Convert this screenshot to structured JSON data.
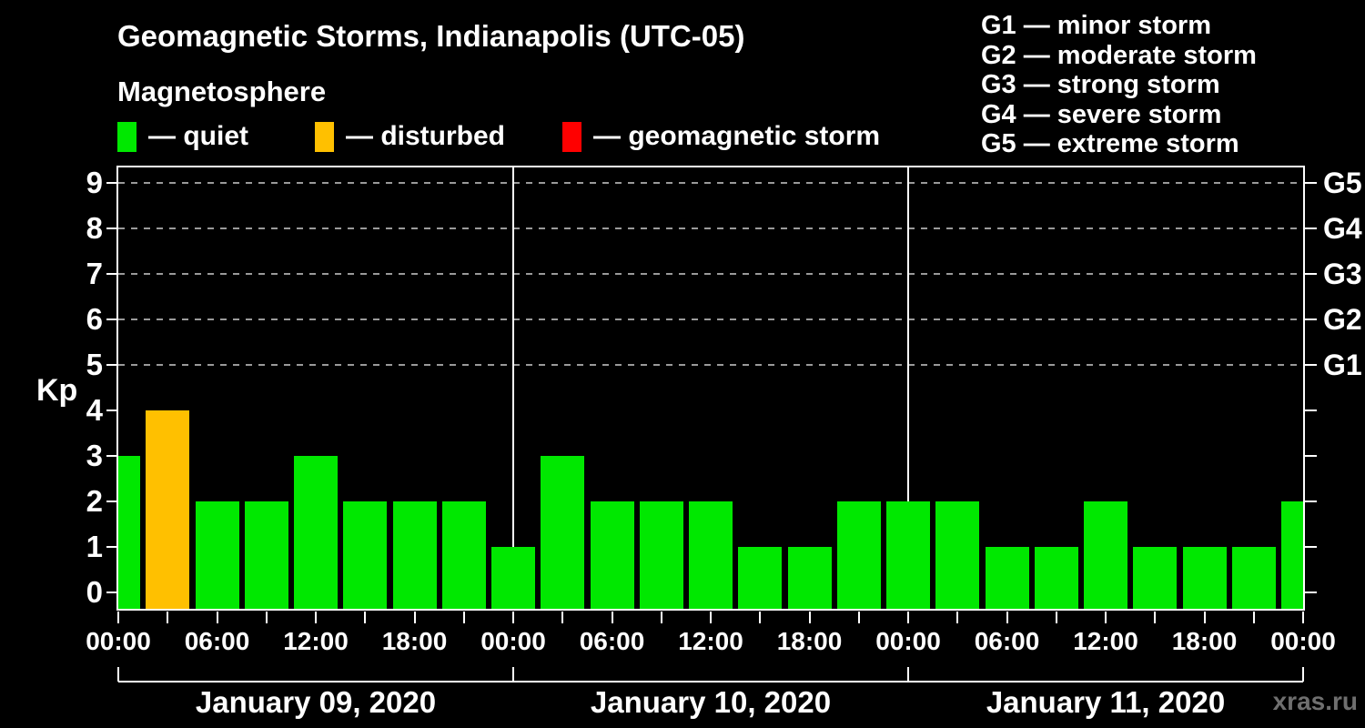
{
  "title": "Geomagnetic Storms, Indianapolis (UTC-05)",
  "subtitle": "Magnetosphere",
  "status_legend": {
    "items": [
      {
        "label": "— quiet",
        "status": "quiet"
      },
      {
        "label": "— disturbed",
        "status": "disturbed"
      },
      {
        "label": "— geomagnetic storm",
        "status": "storm"
      }
    ]
  },
  "g_legend": {
    "items": [
      {
        "label": "G1 — minor storm"
      },
      {
        "label": "G2 — moderate storm"
      },
      {
        "label": "G3 — strong storm"
      },
      {
        "label": "G4 — severe storm"
      },
      {
        "label": "G5 — extreme storm"
      }
    ]
  },
  "axes": {
    "y_label": "Kp",
    "y_ticks": [
      0,
      1,
      2,
      3,
      4,
      5,
      6,
      7,
      8,
      9
    ],
    "right_labels": [
      {
        "kp": 5,
        "label": "G1"
      },
      {
        "kp": 6,
        "label": "G2"
      },
      {
        "kp": 7,
        "label": "G3"
      },
      {
        "kp": 8,
        "label": "G4"
      },
      {
        "kp": 9,
        "label": "G5"
      }
    ],
    "x_tick_labels": [
      {
        "hour": 0,
        "label": "00:00"
      },
      {
        "hour": 6,
        "label": "06:00"
      },
      {
        "hour": 12,
        "label": "12:00"
      },
      {
        "hour": 18,
        "label": "18:00"
      },
      {
        "hour": 24,
        "label": "00:00"
      },
      {
        "hour": 30,
        "label": "06:00"
      },
      {
        "hour": 36,
        "label": "12:00"
      },
      {
        "hour": 42,
        "label": "18:00"
      },
      {
        "hour": 48,
        "label": "00:00"
      },
      {
        "hour": 54,
        "label": "06:00"
      },
      {
        "hour": 60,
        "label": "12:00"
      },
      {
        "hour": 66,
        "label": "18:00"
      },
      {
        "hour": 72,
        "label": "00:00"
      }
    ],
    "minor_tick_step_hours": 3,
    "total_hours": 72
  },
  "days": [
    {
      "label": "January 09, 2020",
      "start_hour": 0,
      "end_hour": 24
    },
    {
      "label": "January 10, 2020",
      "start_hour": 24,
      "end_hour": 48
    },
    {
      "label": "January 11, 2020",
      "start_hour": 48,
      "end_hour": 72
    }
  ],
  "watermark": "xras.ru",
  "colors": {
    "background": "#000000",
    "foreground": "#ffffff",
    "quiet": "#00e800",
    "disturbed": "#ffc000",
    "storm": "#ff0000",
    "grid_dashed": "#9a9a9a",
    "watermark": "#6f6f6f"
  },
  "chart_data": {
    "type": "bar",
    "title": "Geomagnetic Storms, Indianapolis (UTC-05)",
    "ylabel": "Kp",
    "ylim": [
      0,
      9
    ],
    "bar_interval_hours": 3,
    "grid_levels_kp": [
      5,
      6,
      7,
      8,
      9
    ],
    "day_boundaries_hours": [
      24,
      48
    ],
    "legend_position": "top",
    "points": [
      {
        "hour": 0,
        "kp": 3,
        "status": "quiet"
      },
      {
        "hour": 3,
        "kp": 4,
        "status": "disturbed"
      },
      {
        "hour": 6,
        "kp": 2,
        "status": "quiet"
      },
      {
        "hour": 9,
        "kp": 2,
        "status": "quiet"
      },
      {
        "hour": 12,
        "kp": 3,
        "status": "quiet"
      },
      {
        "hour": 15,
        "kp": 2,
        "status": "quiet"
      },
      {
        "hour": 18,
        "kp": 2,
        "status": "quiet"
      },
      {
        "hour": 21,
        "kp": 2,
        "status": "quiet"
      },
      {
        "hour": 24,
        "kp": 1,
        "status": "quiet"
      },
      {
        "hour": 27,
        "kp": 3,
        "status": "quiet"
      },
      {
        "hour": 30,
        "kp": 2,
        "status": "quiet"
      },
      {
        "hour": 33,
        "kp": 2,
        "status": "quiet"
      },
      {
        "hour": 36,
        "kp": 2,
        "status": "quiet"
      },
      {
        "hour": 39,
        "kp": 1,
        "status": "quiet"
      },
      {
        "hour": 42,
        "kp": 1,
        "status": "quiet"
      },
      {
        "hour": 45,
        "kp": 2,
        "status": "quiet"
      },
      {
        "hour": 48,
        "kp": 2,
        "status": "quiet"
      },
      {
        "hour": 51,
        "kp": 2,
        "status": "quiet"
      },
      {
        "hour": 54,
        "kp": 1,
        "status": "quiet"
      },
      {
        "hour": 57,
        "kp": 1,
        "status": "quiet"
      },
      {
        "hour": 60,
        "kp": 2,
        "status": "quiet"
      },
      {
        "hour": 63,
        "kp": 1,
        "status": "quiet"
      },
      {
        "hour": 66,
        "kp": 1,
        "status": "quiet"
      },
      {
        "hour": 69,
        "kp": 1,
        "status": "quiet"
      },
      {
        "hour": 72,
        "kp": 2,
        "status": "quiet"
      }
    ]
  }
}
